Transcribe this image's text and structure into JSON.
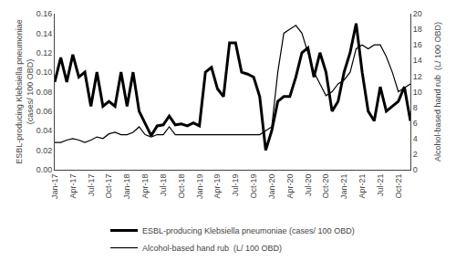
{
  "chart_data": {
    "type": "line",
    "ylabel": "ESBL-producing Klebsiella pneumoniae\n(cases/ 100 OBD)",
    "y2label": "Alcohol-based hand rub  (L/ 100 OBD)",
    "categories": [
      "Jan-17",
      null,
      null,
      "Apr-17",
      null,
      null,
      "Jul-17",
      null,
      null,
      "Oct-17",
      null,
      null,
      "Jan-18",
      null,
      null,
      "Apr-18",
      null,
      null,
      "Jul-18",
      null,
      null,
      "Oct-18",
      null,
      null,
      "Jan-19",
      null,
      null,
      "Apr-19",
      null,
      null,
      "Jul-19",
      null,
      null,
      "Oct-19",
      null,
      null,
      "Jan-20",
      null,
      null,
      "Apr-20",
      null,
      null,
      "Jul-20",
      null,
      null,
      "Oct-20",
      null,
      null,
      "Jan-21",
      null,
      null,
      "Apr-21",
      null,
      null,
      "Jul-21",
      null,
      null,
      "Oct-21",
      null,
      null
    ],
    "ylim": [
      0,
      0.16
    ],
    "yticks": [
      {
        "value": 0,
        "label": "0.00"
      },
      0.02,
      0.04,
      0.06,
      0.08,
      {
        "value": 0.1,
        "label": "0.10"
      },
      0.12,
      0.14,
      0.16
    ],
    "y2lim": [
      0,
      20
    ],
    "y2ticks": [
      0,
      2,
      4,
      6,
      8,
      10,
      12,
      14,
      16,
      18,
      20
    ],
    "grid": false,
    "legend": "bottom",
    "series": [
      {
        "name": "ESBL-producing Klebsiella pneumoniae (cases/ 100 OBD)",
        "color": "#000000",
        "values": [
          0.09,
          0.115,
          0.09,
          0.118,
          0.095,
          0.1,
          0.065,
          0.1,
          0.065,
          0.07,
          0.065,
          0.1,
          0.065,
          0.1,
          0.06,
          0.047,
          0.035,
          0.045,
          0.046,
          0.055,
          0.046,
          0.047,
          0.045,
          0.048,
          0.045,
          0.1,
          0.105,
          0.083,
          0.075,
          0.13,
          0.13,
          0.1,
          0.098,
          0.095,
          0.075,
          0.02,
          0.04,
          0.07,
          0.075,
          0.075,
          0.095,
          0.12,
          0.125,
          0.095,
          0.12,
          0.1,
          0.06,
          0.07,
          0.1,
          0.12,
          0.15,
          0.1,
          0.06,
          0.05,
          0.085,
          0.06,
          0.065,
          0.07,
          0.085,
          0.05
        ]
      },
      {
        "name": "Alcohol-based hand rub  (L/ 100 OBD)",
        "color": "#000000",
        "axis": "y2",
        "values": [
          3.5,
          3.5,
          3.8,
          4.0,
          3.8,
          3.5,
          3.8,
          4.2,
          4.0,
          4.6,
          4.8,
          4.5,
          4.5,
          4.8,
          5.5,
          4.5,
          4.2,
          4.5,
          4.5,
          5.5,
          4.5,
          4.5,
          4.5,
          4.5,
          4.5,
          4.5,
          4.5,
          4.5,
          4.5,
          4.5,
          4.5,
          4.5,
          4.5,
          4.5,
          4.5,
          5.0,
          5.5,
          12.5,
          17.5,
          18.0,
          18.5,
          17.5,
          15.0,
          12.5,
          11.0,
          9.5,
          10.0,
          11.0,
          11.5,
          12.5,
          15.5,
          16.0,
          15.5,
          16.0,
          16.0,
          14.5,
          12.5,
          10.0,
          10.5,
          11.0
        ]
      }
    ]
  }
}
